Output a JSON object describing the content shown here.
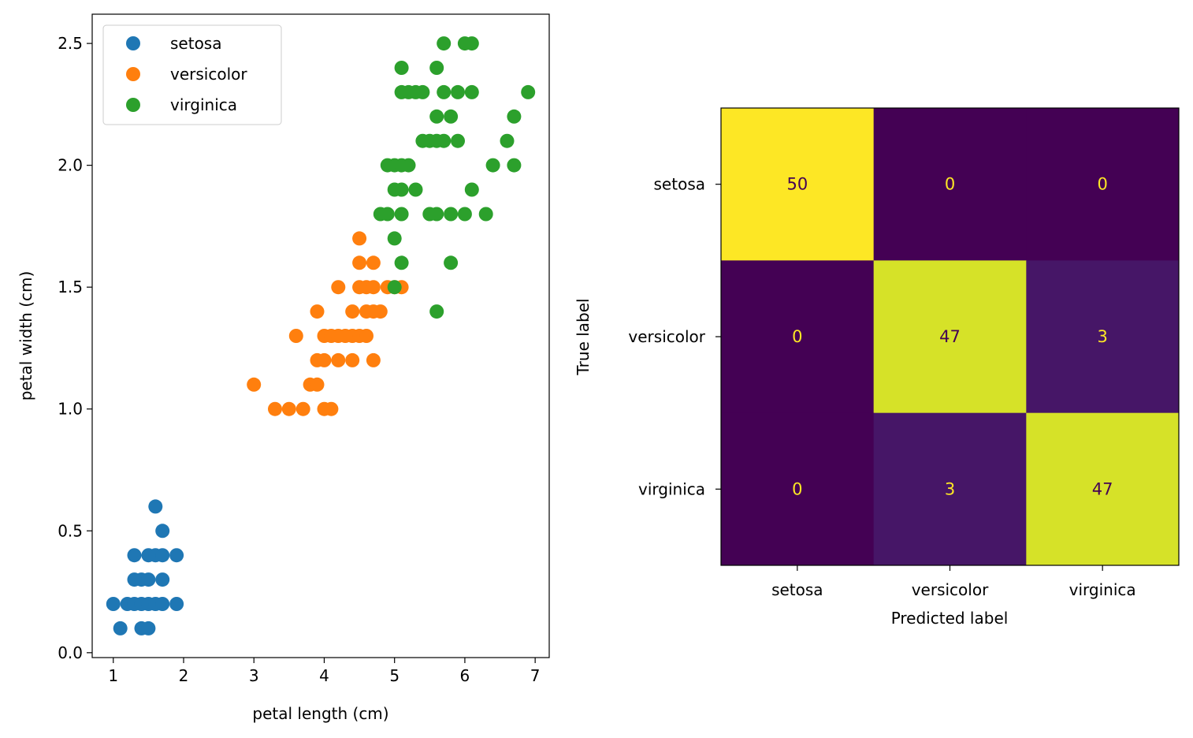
{
  "chart_data": [
    {
      "type": "scatter",
      "xlabel": "petal length (cm)",
      "ylabel": "petal width (cm)",
      "xlim": [
        0.7,
        7.2
      ],
      "ylim": [
        -0.02,
        2.62
      ],
      "xticks": [
        1,
        2,
        3,
        4,
        5,
        6,
        7
      ],
      "yticks": [
        0.0,
        0.5,
        1.0,
        1.5,
        2.0,
        2.5
      ],
      "xtick_labels": [
        "1",
        "2",
        "3",
        "4",
        "5",
        "6",
        "7"
      ],
      "ytick_labels": [
        "0.0",
        "0.5",
        "1.0",
        "1.5",
        "2.0",
        "2.5"
      ],
      "legend_position": "top-left",
      "series": [
        {
          "name": "setosa",
          "color": "#1f77b4",
          "points": [
            [
              1.0,
              0.2
            ],
            [
              1.1,
              0.1
            ],
            [
              1.2,
              0.2
            ],
            [
              1.3,
              0.2
            ],
            [
              1.3,
              0.3
            ],
            [
              1.3,
              0.4
            ],
            [
              1.4,
              0.1
            ],
            [
              1.4,
              0.2
            ],
            [
              1.4,
              0.3
            ],
            [
              1.5,
              0.1
            ],
            [
              1.5,
              0.2
            ],
            [
              1.5,
              0.3
            ],
            [
              1.5,
              0.4
            ],
            [
              1.6,
              0.2
            ],
            [
              1.6,
              0.4
            ],
            [
              1.6,
              0.6
            ],
            [
              1.7,
              0.2
            ],
            [
              1.7,
              0.3
            ],
            [
              1.7,
              0.4
            ],
            [
              1.7,
              0.5
            ],
            [
              1.9,
              0.2
            ],
            [
              1.9,
              0.4
            ]
          ]
        },
        {
          "name": "versicolor",
          "color": "#ff7f0e",
          "points": [
            [
              3.0,
              1.1
            ],
            [
              3.3,
              1.0
            ],
            [
              3.5,
              1.0
            ],
            [
              3.6,
              1.3
            ],
            [
              3.7,
              1.0
            ],
            [
              3.8,
              1.1
            ],
            [
              3.9,
              1.1
            ],
            [
              3.9,
              1.2
            ],
            [
              3.9,
              1.4
            ],
            [
              4.0,
              1.0
            ],
            [
              4.0,
              1.2
            ],
            [
              4.0,
              1.3
            ],
            [
              4.1,
              1.0
            ],
            [
              4.1,
              1.3
            ],
            [
              4.2,
              1.2
            ],
            [
              4.2,
              1.3
            ],
            [
              4.2,
              1.5
            ],
            [
              4.3,
              1.3
            ],
            [
              4.4,
              1.2
            ],
            [
              4.4,
              1.3
            ],
            [
              4.4,
              1.4
            ],
            [
              4.5,
              1.3
            ],
            [
              4.5,
              1.5
            ],
            [
              4.5,
              1.6
            ],
            [
              4.5,
              1.7
            ],
            [
              4.6,
              1.3
            ],
            [
              4.6,
              1.4
            ],
            [
              4.6,
              1.5
            ],
            [
              4.7,
              1.2
            ],
            [
              4.7,
              1.4
            ],
            [
              4.7,
              1.5
            ],
            [
              4.7,
              1.6
            ],
            [
              4.8,
              1.4
            ],
            [
              4.9,
              1.5
            ],
            [
              5.0,
              1.5
            ],
            [
              5.1,
              1.5
            ]
          ]
        },
        {
          "name": "virginica",
          "color": "#2ca02c",
          "points": [
            [
              4.8,
              1.8
            ],
            [
              4.9,
              1.8
            ],
            [
              4.9,
              2.0
            ],
            [
              5.0,
              1.5
            ],
            [
              5.0,
              1.7
            ],
            [
              5.0,
              1.9
            ],
            [
              5.0,
              2.0
            ],
            [
              5.1,
              1.6
            ],
            [
              5.1,
              1.8
            ],
            [
              5.1,
              1.9
            ],
            [
              5.1,
              2.0
            ],
            [
              5.1,
              2.3
            ],
            [
              5.1,
              2.4
            ],
            [
              5.2,
              2.0
            ],
            [
              5.2,
              2.3
            ],
            [
              5.3,
              1.9
            ],
            [
              5.3,
              2.3
            ],
            [
              5.4,
              2.1
            ],
            [
              5.4,
              2.3
            ],
            [
              5.5,
              1.8
            ],
            [
              5.5,
              2.1
            ],
            [
              5.6,
              1.4
            ],
            [
              5.6,
              1.8
            ],
            [
              5.6,
              2.1
            ],
            [
              5.6,
              2.2
            ],
            [
              5.6,
              2.4
            ],
            [
              5.7,
              2.1
            ],
            [
              5.7,
              2.3
            ],
            [
              5.7,
              2.5
            ],
            [
              5.8,
              1.6
            ],
            [
              5.8,
              1.8
            ],
            [
              5.8,
              2.2
            ],
            [
              5.9,
              2.1
            ],
            [
              5.9,
              2.3
            ],
            [
              6.0,
              1.8
            ],
            [
              6.0,
              2.5
            ],
            [
              6.1,
              1.9
            ],
            [
              6.1,
              2.3
            ],
            [
              6.1,
              2.5
            ],
            [
              6.3,
              1.8
            ],
            [
              6.4,
              2.0
            ],
            [
              6.6,
              2.1
            ],
            [
              6.7,
              2.0
            ],
            [
              6.7,
              2.2
            ],
            [
              6.9,
              2.3
            ]
          ]
        }
      ]
    },
    {
      "type": "heatmap",
      "xlabel": "Predicted label",
      "ylabel": "True label",
      "categories": [
        "setosa",
        "versicolor",
        "virginica"
      ],
      "values": [
        [
          50,
          0,
          0
        ],
        [
          0,
          47,
          3
        ],
        [
          0,
          3,
          47
        ]
      ],
      "colormap": "viridis",
      "colors": {
        "low": "#440154",
        "high": "#fde725",
        "text_dark": "#440154",
        "text_light": "#fde725"
      }
    }
  ]
}
